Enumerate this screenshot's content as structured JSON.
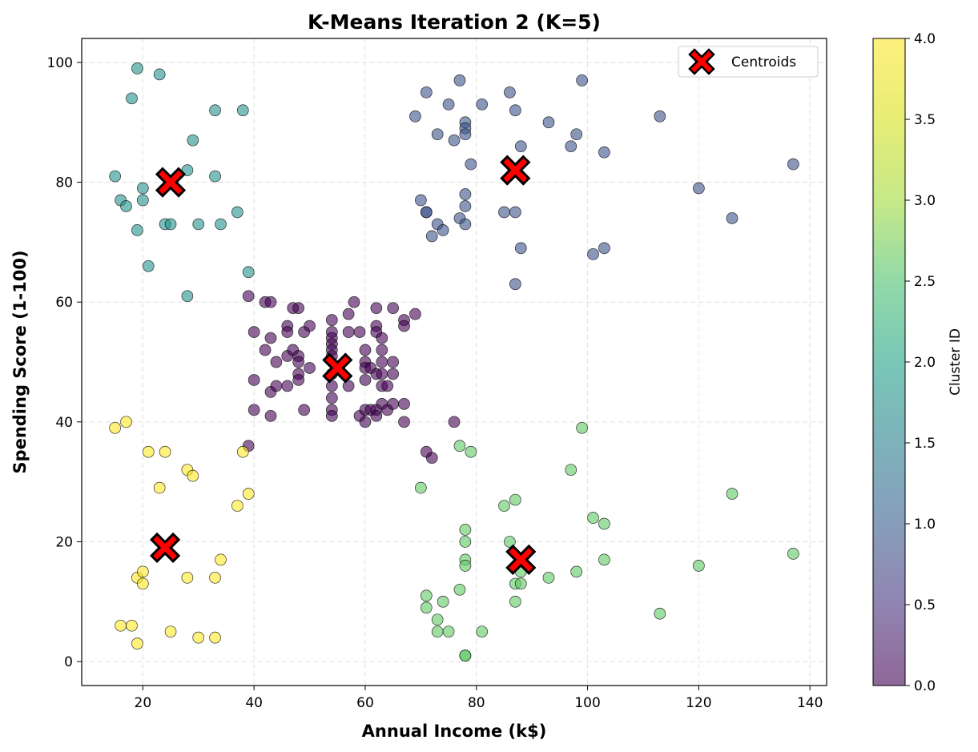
{
  "chart_data": {
    "type": "scatter",
    "title": "K-Means Iteration 2 (K=5)",
    "xlabel": "Annual Income (k$)",
    "ylabel": "Spending Score (1-100)",
    "xlim": [
      9,
      143
    ],
    "ylim": [
      -4,
      104
    ],
    "x_ticks": [
      20,
      40,
      60,
      80,
      100,
      120,
      140
    ],
    "y_ticks": [
      0,
      20,
      40,
      60,
      80,
      100
    ],
    "grid": true,
    "legend": {
      "position": "top-right",
      "entries": [
        "Centroids"
      ]
    },
    "colorbar": {
      "label": "Cluster ID",
      "range": [
        0,
        4
      ],
      "ticks": [
        "0.0",
        "0.5",
        "1.0",
        "1.5",
        "2.0",
        "2.5",
        "3.0",
        "3.5",
        "4.0"
      ],
      "colormap": "viridis"
    },
    "cluster_colors": [
      "#440154",
      "#3b528b",
      "#21918c",
      "#5ec962",
      "#fde725"
    ],
    "series": [
      {
        "cluster": 0,
        "points": [
          [
            39,
            61
          ],
          [
            39,
            36
          ],
          [
            40,
            55
          ],
          [
            40,
            47
          ],
          [
            40,
            42
          ],
          [
            42,
            60
          ],
          [
            42,
            52
          ],
          [
            43,
            60
          ],
          [
            43,
            54
          ],
          [
            43,
            45
          ],
          [
            43,
            41
          ],
          [
            44,
            50
          ],
          [
            44,
            46
          ],
          [
            46,
            56
          ],
          [
            46,
            55
          ],
          [
            46,
            51
          ],
          [
            46,
            46
          ],
          [
            47,
            59
          ],
          [
            47,
            52
          ],
          [
            48,
            59
          ],
          [
            48,
            51
          ],
          [
            48,
            50
          ],
          [
            48,
            48
          ],
          [
            48,
            47
          ],
          [
            49,
            55
          ],
          [
            49,
            42
          ],
          [
            50,
            56
          ],
          [
            50,
            49
          ],
          [
            54,
            57
          ],
          [
            54,
            55
          ],
          [
            54,
            54
          ],
          [
            54,
            53
          ],
          [
            54,
            52
          ],
          [
            54,
            51
          ],
          [
            54,
            48
          ],
          [
            54,
            46
          ],
          [
            54,
            44
          ],
          [
            54,
            42
          ],
          [
            54,
            41
          ],
          [
            57,
            58
          ],
          [
            57,
            55
          ],
          [
            57,
            46
          ],
          [
            58,
            60
          ],
          [
            59,
            55
          ],
          [
            59,
            41
          ],
          [
            60,
            52
          ],
          [
            60,
            50
          ],
          [
            60,
            49
          ],
          [
            60,
            47
          ],
          [
            60,
            42
          ],
          [
            60,
            40
          ],
          [
            61,
            49
          ],
          [
            61,
            42
          ],
          [
            62,
            59
          ],
          [
            62,
            56
          ],
          [
            62,
            55
          ],
          [
            62,
            48
          ],
          [
            62,
            42
          ],
          [
            62,
            41
          ],
          [
            63,
            54
          ],
          [
            63,
            52
          ],
          [
            63,
            50
          ],
          [
            63,
            48
          ],
          [
            63,
            46
          ],
          [
            63,
            43
          ],
          [
            64,
            46
          ],
          [
            64,
            42
          ],
          [
            65,
            59
          ],
          [
            65,
            50
          ],
          [
            65,
            48
          ],
          [
            65,
            43
          ],
          [
            67,
            57
          ],
          [
            67,
            56
          ],
          [
            67,
            43
          ],
          [
            67,
            40
          ],
          [
            69,
            58
          ],
          [
            71,
            35
          ],
          [
            72,
            34
          ],
          [
            76,
            40
          ]
        ]
      },
      {
        "cluster": 1,
        "points": [
          [
            69,
            91
          ],
          [
            70,
            77
          ],
          [
            71,
            95
          ],
          [
            71,
            75
          ],
          [
            71,
            75
          ],
          [
            72,
            71
          ],
          [
            73,
            88
          ],
          [
            73,
            73
          ],
          [
            74,
            72
          ],
          [
            75,
            93
          ],
          [
            76,
            87
          ],
          [
            77,
            97
          ],
          [
            77,
            74
          ],
          [
            78,
            90
          ],
          [
            78,
            89
          ],
          [
            78,
            88
          ],
          [
            78,
            78
          ],
          [
            78,
            76
          ],
          [
            78,
            73
          ],
          [
            79,
            83
          ],
          [
            81,
            93
          ],
          [
            85,
            75
          ],
          [
            86,
            95
          ],
          [
            87,
            92
          ],
          [
            87,
            75
          ],
          [
            87,
            63
          ],
          [
            88,
            86
          ],
          [
            88,
            69
          ],
          [
            93,
            90
          ],
          [
            97,
            86
          ],
          [
            98,
            88
          ],
          [
            99,
            97
          ],
          [
            101,
            68
          ],
          [
            103,
            85
          ],
          [
            103,
            69
          ],
          [
            113,
            91
          ],
          [
            120,
            79
          ],
          [
            126,
            74
          ],
          [
            137,
            83
          ]
        ]
      },
      {
        "cluster": 2,
        "points": [
          [
            15,
            81
          ],
          [
            16,
            77
          ],
          [
            17,
            76
          ],
          [
            18,
            94
          ],
          [
            19,
            99
          ],
          [
            19,
            72
          ],
          [
            20,
            79
          ],
          [
            20,
            77
          ],
          [
            21,
            66
          ],
          [
            23,
            98
          ],
          [
            24,
            73
          ],
          [
            25,
            73
          ],
          [
            28,
            82
          ],
          [
            28,
            61
          ],
          [
            29,
            87
          ],
          [
            30,
            73
          ],
          [
            33,
            92
          ],
          [
            33,
            81
          ],
          [
            34,
            73
          ],
          [
            37,
            75
          ],
          [
            38,
            92
          ],
          [
            39,
            65
          ]
        ]
      },
      {
        "cluster": 3,
        "points": [
          [
            70,
            29
          ],
          [
            71,
            11
          ],
          [
            71,
            9
          ],
          [
            73,
            7
          ],
          [
            73,
            5
          ],
          [
            74,
            10
          ],
          [
            75,
            5
          ],
          [
            77,
            36
          ],
          [
            77,
            12
          ],
          [
            78,
            22
          ],
          [
            78,
            20
          ],
          [
            78,
            17
          ],
          [
            78,
            16
          ],
          [
            78,
            1
          ],
          [
            78,
            1
          ],
          [
            79,
            35
          ],
          [
            81,
            5
          ],
          [
            85,
            26
          ],
          [
            86,
            20
          ],
          [
            87,
            27
          ],
          [
            87,
            13
          ],
          [
            87,
            10
          ],
          [
            88,
            15
          ],
          [
            88,
            13
          ],
          [
            93,
            14
          ],
          [
            97,
            32
          ],
          [
            98,
            15
          ],
          [
            99,
            39
          ],
          [
            101,
            24
          ],
          [
            103,
            23
          ],
          [
            103,
            17
          ],
          [
            113,
            8
          ],
          [
            120,
            16
          ],
          [
            126,
            28
          ],
          [
            137,
            18
          ]
        ]
      },
      {
        "cluster": 4,
        "points": [
          [
            15,
            39
          ],
          [
            16,
            6
          ],
          [
            17,
            40
          ],
          [
            18,
            6
          ],
          [
            19,
            14
          ],
          [
            19,
            3
          ],
          [
            20,
            15
          ],
          [
            20,
            13
          ],
          [
            21,
            35
          ],
          [
            23,
            29
          ],
          [
            24,
            35
          ],
          [
            25,
            5
          ],
          [
            28,
            32
          ],
          [
            28,
            14
          ],
          [
            29,
            31
          ],
          [
            30,
            4
          ],
          [
            33,
            14
          ],
          [
            33,
            4
          ],
          [
            34,
            17
          ],
          [
            37,
            26
          ],
          [
            38,
            35
          ],
          [
            39,
            28
          ]
        ]
      }
    ],
    "centroids": [
      [
        55,
        49
      ],
      [
        87,
        82
      ],
      [
        25,
        80
      ],
      [
        88,
        17
      ],
      [
        24,
        19
      ]
    ]
  }
}
